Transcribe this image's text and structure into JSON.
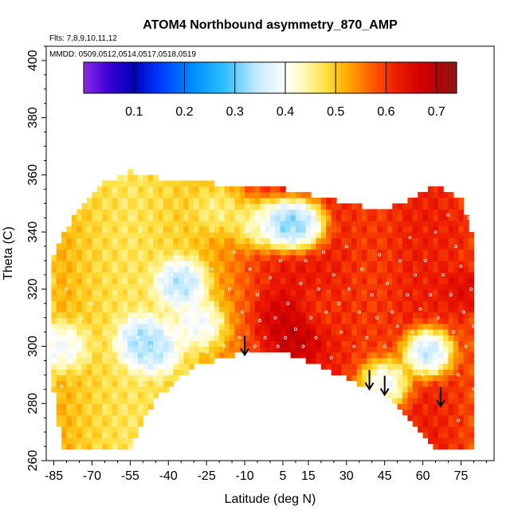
{
  "chart_data": {
    "type": "heatmap",
    "title": "ATOM4 Northbound asymmetry_870_AMP",
    "annotations": {
      "flights": "Flts: 7,8,9,10,11,12",
      "dates": "MMDD: 0509,0512,0514,0517,0518,0519"
    },
    "xlabel": "Latitude (deg N)",
    "ylabel": "Theta (C)",
    "xlim": [
      -88,
      88
    ],
    "ylim": [
      260,
      405
    ],
    "x_ticks": [
      -85,
      -70,
      -55,
      -40,
      -25,
      -10,
      5,
      15,
      30,
      45,
      60,
      75
    ],
    "y_ticks": [
      260,
      280,
      300,
      320,
      340,
      360,
      380,
      400
    ],
    "colorbar": {
      "range": [
        0.0,
        0.74
      ],
      "ticks": [
        "0.1",
        "0.2",
        "0.3",
        "0.4",
        "0.5",
        "0.6",
        "0.7"
      ],
      "tick_values": [
        0.1,
        0.2,
        0.3,
        0.4,
        0.5,
        0.6,
        0.7
      ],
      "stops": [
        {
          "v": 0.0,
          "c": "#8a2be2"
        },
        {
          "v": 0.05,
          "c": "#3b00d8"
        },
        {
          "v": 0.1,
          "c": "#0000b8"
        },
        {
          "v": 0.15,
          "c": "#0038ff"
        },
        {
          "v": 0.22,
          "c": "#0090ff"
        },
        {
          "v": 0.28,
          "c": "#30bfff"
        },
        {
          "v": 0.34,
          "c": "#bfe8ff"
        },
        {
          "v": 0.4,
          "c": "#ffffff"
        },
        {
          "v": 0.44,
          "c": "#fff8b0"
        },
        {
          "v": 0.48,
          "c": "#ffe040"
        },
        {
          "v": 0.52,
          "c": "#ffb000"
        },
        {
          "v": 0.57,
          "c": "#ff6000"
        },
        {
          "v": 0.62,
          "c": "#ee1c00"
        },
        {
          "v": 0.67,
          "c": "#d40000"
        },
        {
          "v": 0.71,
          "c": "#aa0808"
        },
        {
          "v": 0.74,
          "c": "#8b1a1a"
        }
      ]
    },
    "grid": false,
    "field_regions": [
      {
        "lat": -85,
        "theta_top": 332,
        "theta_bottom": 284,
        "value": 0.5
      },
      {
        "lat": -82,
        "theta_top": 338,
        "theta_bottom": 265,
        "value": 0.52
      },
      {
        "lat": -75,
        "theta_top": 348,
        "theta_bottom": 265,
        "value": 0.5
      },
      {
        "lat": -65,
        "theta_top": 357,
        "theta_bottom": 265,
        "value": 0.48
      },
      {
        "lat": -55,
        "theta_top": 361,
        "theta_bottom": 265,
        "value": 0.47
      },
      {
        "lat": -45,
        "theta_top": 359,
        "theta_bottom": 282,
        "value": 0.48
      },
      {
        "lat": -30,
        "theta_top": 358,
        "theta_bottom": 293,
        "value": 0.5
      },
      {
        "lat": -15,
        "theta_top": 356,
        "theta_bottom": 297,
        "value": 0.55
      },
      {
        "lat": -5,
        "theta_top": 356,
        "theta_bottom": 299,
        "value": 0.6
      },
      {
        "lat": 5,
        "theta_top": 355,
        "theta_bottom": 298,
        "value": 0.63
      },
      {
        "lat": 15,
        "theta_top": 353,
        "theta_bottom": 295,
        "value": 0.63
      },
      {
        "lat": 25,
        "theta_top": 351,
        "theta_bottom": 291,
        "value": 0.62
      },
      {
        "lat": 35,
        "theta_top": 349,
        "theta_bottom": 287,
        "value": 0.6
      },
      {
        "lat": 45,
        "theta_top": 348,
        "theta_bottom": 283,
        "value": 0.6
      },
      {
        "lat": 55,
        "theta_top": 351,
        "theta_bottom": 275,
        "value": 0.62
      },
      {
        "lat": 65,
        "theta_top": 356,
        "theta_bottom": 265,
        "value": 0.62
      },
      {
        "lat": 75,
        "theta_top": 352,
        "theta_bottom": 264,
        "value": 0.6
      },
      {
        "lat": 80,
        "theta_top": 338,
        "theta_bottom": 264,
        "value": 0.58
      }
    ],
    "features": [
      {
        "lat": -82,
        "theta": 300,
        "value": 0.36
      },
      {
        "lat": -50,
        "theta": 302,
        "value": 0.3
      },
      {
        "lat": -45,
        "theta": 299,
        "value": 0.32
      },
      {
        "lat": -35,
        "theta": 322,
        "value": 0.3
      },
      {
        "lat": -28,
        "theta": 308,
        "value": 0.36
      },
      {
        "lat": -5,
        "theta": 343,
        "value": 0.4
      },
      {
        "lat": 5,
        "theta": 343,
        "value": 0.25
      },
      {
        "lat": 12,
        "theta": 343,
        "value": 0.28
      },
      {
        "lat": -20,
        "theta": 348,
        "value": 0.44
      },
      {
        "lat": 20,
        "theta": 313,
        "value": 0.6
      },
      {
        "lat": 5,
        "theta": 310,
        "value": 0.68
      },
      {
        "lat": 10,
        "theta": 303,
        "value": 0.7
      },
      {
        "lat": 62,
        "theta": 298,
        "value": 0.28
      },
      {
        "lat": 45,
        "theta": 287,
        "value": 0.34
      },
      {
        "lat": 70,
        "theta": 340,
        "value": 0.62
      },
      {
        "lat": 78,
        "theta": 320,
        "value": 0.66
      }
    ],
    "arrows": [
      {
        "lat": -10,
        "theta_tip": 297
      },
      {
        "lat": 39,
        "theta_tip": 285
      },
      {
        "lat": 45,
        "theta_tip": 283
      },
      {
        "lat": 67,
        "theta_tip": 279
      }
    ],
    "observation_points": [
      [
        -83,
        295
      ],
      [
        -82,
        286
      ],
      [
        -82,
        306
      ],
      [
        -80,
        320
      ],
      [
        -78,
        304
      ],
      [
        -74,
        310
      ],
      [
        -70,
        315
      ],
      [
        -60,
        296
      ],
      [
        -58,
        300
      ],
      [
        -55,
        293
      ],
      [
        -52,
        303
      ],
      [
        -49,
        296
      ],
      [
        -47,
        300
      ],
      [
        -45,
        307
      ],
      [
        -44,
        298
      ],
      [
        -42,
        313
      ],
      [
        -40,
        305
      ],
      [
        -39,
        325
      ],
      [
        -37,
        318
      ],
      [
        -35,
        310
      ],
      [
        -34,
        327
      ],
      [
        -32,
        303
      ],
      [
        -30,
        312
      ],
      [
        -29,
        318
      ],
      [
        -27,
        306
      ],
      [
        -25,
        298
      ],
      [
        -23,
        327
      ],
      [
        -20,
        309
      ],
      [
        -18,
        300
      ],
      [
        -16,
        320
      ],
      [
        -14,
        333
      ],
      [
        -12,
        303
      ],
      [
        -11,
        312
      ],
      [
        -10,
        340
      ],
      [
        -9,
        298
      ],
      [
        -8,
        327
      ],
      [
        -6,
        300
      ],
      [
        -5,
        318
      ],
      [
        -4,
        309
      ],
      [
        -3,
        336
      ],
      [
        -2,
        303
      ],
      [
        0,
        324
      ],
      [
        2,
        310
      ],
      [
        3,
        300
      ],
      [
        4,
        330
      ],
      [
        6,
        303
      ],
      [
        7,
        315
      ],
      [
        8,
        338
      ],
      [
        10,
        306
      ],
      [
        12,
        322
      ],
      [
        13,
        300
      ],
      [
        14,
        330
      ],
      [
        16,
        310
      ],
      [
        18,
        303
      ],
      [
        19,
        320
      ],
      [
        21,
        333
      ],
      [
        22,
        312
      ],
      [
        24,
        296
      ],
      [
        25,
        325
      ],
      [
        27,
        315
      ],
      [
        28,
        305
      ],
      [
        30,
        335
      ],
      [
        31,
        320
      ],
      [
        33,
        300
      ],
      [
        35,
        312
      ],
      [
        36,
        327
      ],
      [
        38,
        303
      ],
      [
        40,
        318
      ],
      [
        42,
        310
      ],
      [
        43,
        332
      ],
      [
        45,
        300
      ],
      [
        46,
        322
      ],
      [
        48,
        312
      ],
      [
        50,
        307
      ],
      [
        51,
        330
      ],
      [
        53,
        295
      ],
      [
        54,
        318
      ],
      [
        55,
        338
      ],
      [
        56,
        305
      ],
      [
        57,
        325
      ],
      [
        58,
        300
      ],
      [
        59,
        313
      ],
      [
        60,
        290
      ],
      [
        61,
        330
      ],
      [
        62,
        303
      ],
      [
        63,
        318
      ],
      [
        64,
        295
      ],
      [
        65,
        340
      ],
      [
        66,
        310
      ],
      [
        67,
        300
      ],
      [
        68,
        325
      ],
      [
        69,
        295
      ],
      [
        70,
        346
      ],
      [
        71,
        318
      ],
      [
        72,
        305
      ],
      [
        73,
        335
      ],
      [
        74,
        290
      ],
      [
        75,
        328
      ],
      [
        76,
        312
      ],
      [
        77,
        300
      ],
      [
        78,
        345
      ],
      [
        79,
        320
      ],
      [
        80,
        307
      ],
      [
        80,
        285
      ],
      [
        74,
        274
      ],
      [
        81,
        333
      ]
    ]
  }
}
